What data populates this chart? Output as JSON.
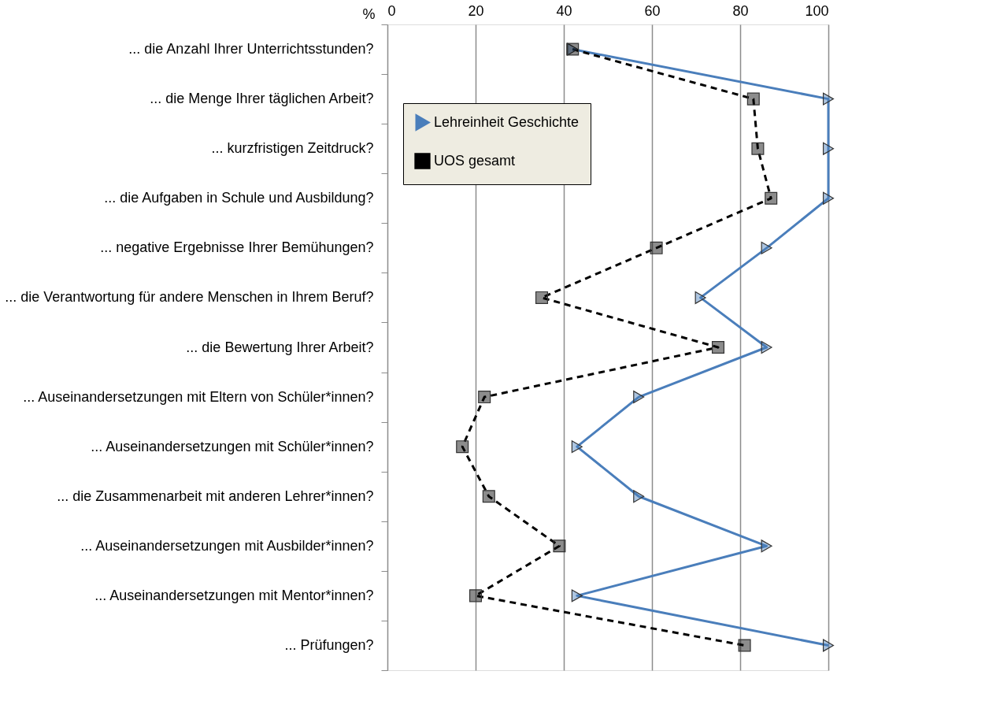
{
  "chart_data": {
    "type": "line",
    "xlabel": "%",
    "categories": [
      "... die Anzahl Ihrer Unterrichtsstunden?",
      "... die Menge Ihrer täglichen Arbeit?",
      "... kurzfristigen Zeitdruck?",
      "... die Aufgaben in Schule und Ausbildung?",
      "... negative Ergebnisse Ihrer Bemühungen?",
      "... die Verantwortung für andere Menschen in Ihrem Beruf?",
      "... die Bewertung Ihrer Arbeit?",
      "... Auseinandersetzungen mit Eltern von Schüler*innen?",
      "... Auseinandersetzungen mit Schüler*innen?",
      "... die Zusammenarbeit mit anderen Lehrer*innen?",
      "... Auseinandersetzungen mit Ausbilder*innen?",
      "... Auseinandersetzungen mit Mentor*innen?",
      "... Prüfungen?"
    ],
    "orientation": "horizontal",
    "series": [
      {
        "name": "Lehreinheit Geschichte",
        "color": "#4a7ebb",
        "marker": "triangle",
        "line_style": "solid",
        "values": [
          42,
          100,
          100,
          100,
          86,
          71,
          86,
          57,
          43,
          57,
          86,
          43,
          100
        ]
      },
      {
        "name": "UOS gesamt",
        "color": "#000000",
        "marker": "square",
        "line_style": "dashed",
        "values": [
          42,
          83,
          84,
          87,
          61,
          35,
          75,
          22,
          17,
          23,
          39,
          20,
          81
        ]
      }
    ],
    "xlim": [
      0,
      100
    ],
    "xticks": [
      0,
      20,
      40,
      60,
      80,
      100
    ],
    "grid": "x",
    "legend": "top left"
  }
}
